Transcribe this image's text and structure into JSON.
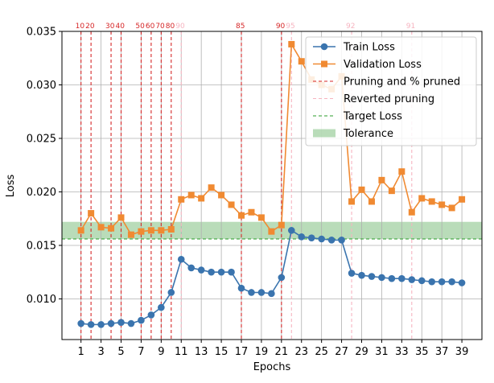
{
  "chart_data": {
    "type": "line",
    "title": "",
    "xlabel": "Epochs",
    "ylabel": "Loss",
    "xlim": [
      -0.9,
      41.0
    ],
    "ylim": [
      0.0062,
      0.035
    ],
    "x_ticks": [
      1,
      3,
      5,
      7,
      9,
      11,
      13,
      15,
      17,
      19,
      21,
      23,
      25,
      27,
      29,
      31,
      33,
      35,
      37,
      39
    ],
    "y_ticks": [
      0.01,
      0.015,
      0.02,
      0.025,
      0.03,
      0.035
    ],
    "y_tick_labels": [
      "0.010",
      "0.015",
      "0.020",
      "0.025",
      "0.030",
      "0.035"
    ],
    "grid": true,
    "legend_position": "upper-right",
    "series": [
      {
        "name": "Train Loss",
        "color": "#3a74ae",
        "marker": "circle",
        "x": [
          1,
          2,
          3,
          4,
          5,
          6,
          7,
          8,
          9,
          10,
          11,
          12,
          13,
          14,
          15,
          16,
          17,
          18,
          19,
          20,
          21,
          22,
          23,
          24,
          25,
          26,
          27,
          28,
          29,
          30,
          31,
          32,
          33,
          34,
          35,
          36,
          37,
          38,
          39
        ],
        "values": [
          0.0077,
          0.0076,
          0.0076,
          0.0077,
          0.0078,
          0.0077,
          0.008,
          0.0085,
          0.0092,
          0.0106,
          0.0137,
          0.0129,
          0.0127,
          0.0125,
          0.0125,
          0.0125,
          0.011,
          0.0106,
          0.0106,
          0.0105,
          0.012,
          0.0164,
          0.0158,
          0.0157,
          0.0156,
          0.0155,
          0.0155,
          0.0124,
          0.0122,
          0.0121,
          0.012,
          0.0119,
          0.0119,
          0.0118,
          0.0117,
          0.0116,
          0.0116,
          0.0116,
          0.0115
        ]
      },
      {
        "name": "Validation Loss",
        "color": "#f08a32",
        "marker": "square",
        "x": [
          1,
          2,
          3,
          4,
          5,
          6,
          7,
          8,
          9,
          10,
          11,
          12,
          13,
          14,
          15,
          16,
          17,
          18,
          19,
          20,
          21,
          22,
          23,
          24,
          25,
          26,
          27,
          28,
          29,
          30,
          31,
          32,
          33,
          34,
          35,
          36,
          37,
          38,
          39
        ],
        "values": [
          0.0164,
          0.018,
          0.0167,
          0.0166,
          0.0176,
          0.016,
          0.0163,
          0.0164,
          0.0164,
          0.0165,
          0.0193,
          0.0197,
          0.0194,
          0.0204,
          0.0197,
          0.0188,
          0.0178,
          0.0181,
          0.0176,
          0.0163,
          0.0169,
          0.0338,
          0.0322,
          0.0305,
          0.03,
          0.0296,
          0.0308,
          0.0191,
          0.0202,
          0.0191,
          0.0211,
          0.0201,
          0.0219,
          0.0181,
          0.0194,
          0.0191,
          0.0188,
          0.0185,
          0.0193
        ]
      }
    ],
    "pruning_events": [
      {
        "x": 1,
        "label": "10",
        "status": "pruned"
      },
      {
        "x": 2,
        "label": "20",
        "status": "pruned"
      },
      {
        "x": 4,
        "label": "30",
        "status": "pruned"
      },
      {
        "x": 5,
        "label": "40",
        "status": "pruned"
      },
      {
        "x": 7,
        "label": "50",
        "status": "pruned"
      },
      {
        "x": 8,
        "label": "60",
        "status": "pruned"
      },
      {
        "x": 9,
        "label": "70",
        "status": "pruned"
      },
      {
        "x": 10,
        "label": "80",
        "status": "pruned"
      },
      {
        "x": 11,
        "label": "90",
        "status": "reverted"
      },
      {
        "x": 17,
        "label": "85",
        "status": "pruned"
      },
      {
        "x": 21,
        "label": "90",
        "status": "pruned"
      },
      {
        "x": 22,
        "label": "95",
        "status": "reverted"
      },
      {
        "x": 28,
        "label": "92",
        "status": "reverted"
      },
      {
        "x": 34,
        "label": "91",
        "status": "reverted"
      }
    ],
    "target_loss": 0.0156,
    "tolerance_band": [
      0.0156,
      0.0172
    ],
    "colors": {
      "pruned_line": "#d62728",
      "reverted_line": "#f6b4c0",
      "target_line": "#2a9d2a",
      "tolerance_fill": "#7fbf7f"
    },
    "legend": [
      {
        "label": "Train Loss",
        "kind": "train"
      },
      {
        "label": "Validation Loss",
        "kind": "val"
      },
      {
        "label": "Pruning and % pruned",
        "kind": "pruned"
      },
      {
        "label": "Reverted pruning",
        "kind": "reverted"
      },
      {
        "label": "Target Loss",
        "kind": "target"
      },
      {
        "label": "Tolerance",
        "kind": "tolerance"
      }
    ]
  }
}
